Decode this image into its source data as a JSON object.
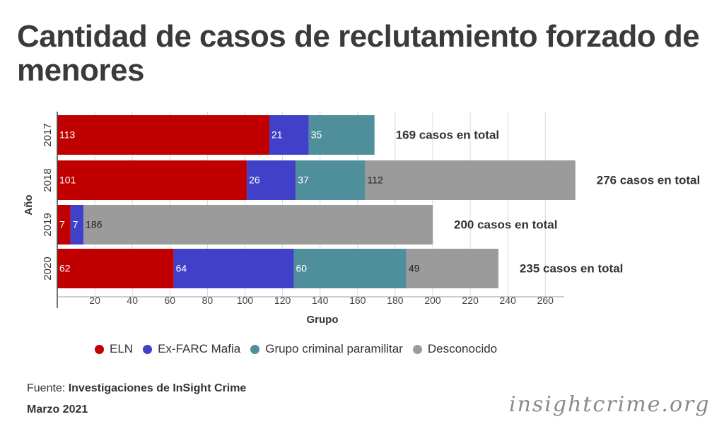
{
  "title": "Cantidad de casos de reclutamiento forzado de menores",
  "source": {
    "prefix": "Fuente: ",
    "text": "Investigaciones de InSight Crime"
  },
  "date": "Marzo 2021",
  "brand": "insightcrime.org",
  "colors": {
    "ELN": "#c00000",
    "Ex-FARC Mafia": "#4040c8",
    "Grupo criminal paramilitar": "#4f8f9c",
    "Desconocido": "#9b9b9b"
  },
  "chart_data": {
    "type": "bar",
    "orientation": "horizontal",
    "stacked": true,
    "categories": [
      "2017",
      "2018",
      "2019",
      "2020"
    ],
    "series": [
      {
        "name": "ELN",
        "values": [
          113,
          101,
          7,
          62
        ]
      },
      {
        "name": "Ex-FARC Mafia",
        "values": [
          21,
          26,
          7,
          64
        ]
      },
      {
        "name": "Grupo criminal paramilitar",
        "values": [
          35,
          37,
          0,
          60
        ]
      },
      {
        "name": "Desconocido",
        "values": [
          0,
          112,
          186,
          49
        ]
      }
    ],
    "totals": [
      "169 casos en total",
      "276 casos en total",
      "200 casos en total",
      "235 casos en total"
    ],
    "xlabel": "Grupo",
    "ylabel": "Año",
    "xlim": [
      0,
      270
    ],
    "xticks": [
      20,
      40,
      60,
      80,
      100,
      120,
      140,
      160,
      180,
      200,
      220,
      240,
      260
    ],
    "grid": true,
    "legend_position": "bottom"
  }
}
